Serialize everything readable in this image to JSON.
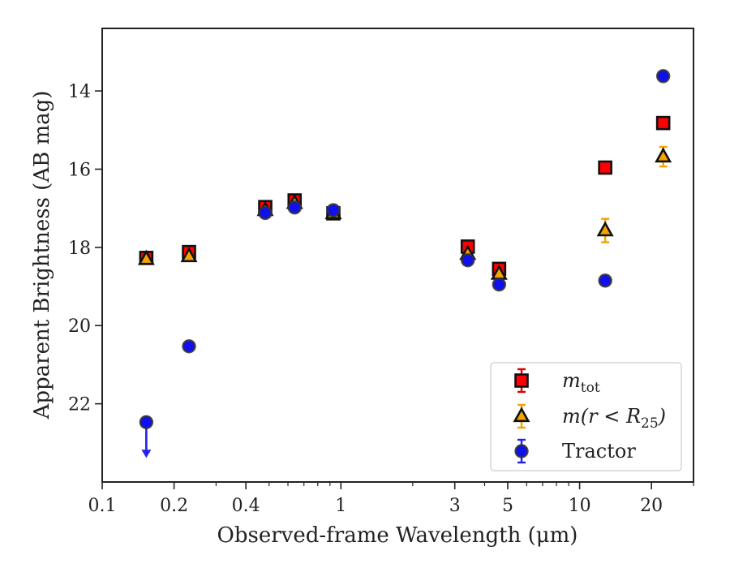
{
  "chart_data": {
    "type": "scatter",
    "xlabel": "Observed-frame Wavelength (μm)",
    "ylabel": "Apparent Brightness (AB mag)",
    "xscale": "log",
    "xlim": [
      0.1,
      30
    ],
    "ylim": [
      24.0,
      12.4
    ],
    "y_inverted": true,
    "x_ticks": [
      0.1,
      0.2,
      0.4,
      1,
      3,
      5,
      10,
      20
    ],
    "x_tick_labels": [
      "0.1",
      "0.2",
      "0.4",
      "1",
      "3",
      "5",
      "10",
      "20"
    ],
    "y_ticks": [
      14,
      16,
      18,
      20,
      22
    ],
    "y_tick_labels": [
      "14",
      "16",
      "18",
      "20",
      "22"
    ],
    "grid": false,
    "legend_position": "lower-right",
    "series": [
      {
        "name": "m_tot",
        "legend_main": "m",
        "legend_sub": "tot",
        "legend_tail": "",
        "marker": "square",
        "color": "#ff0000",
        "edge_color": "#111111",
        "errbar_color": "#dd0000",
        "points": [
          {
            "x": 0.153,
            "y": 18.27,
            "err": 0.05
          },
          {
            "x": 0.231,
            "y": 18.12,
            "err": 0.05
          },
          {
            "x": 0.482,
            "y": 16.97,
            "err": 0.05
          },
          {
            "x": 0.64,
            "y": 16.8,
            "err": 0.05
          },
          {
            "x": 0.93,
            "y": 17.13,
            "err": 0.05
          },
          {
            "x": 3.4,
            "y": 17.98,
            "err": 0.05
          },
          {
            "x": 4.6,
            "y": 18.55,
            "err": 0.05
          },
          {
            "x": 12.8,
            "y": 15.96,
            "err": 0.05
          },
          {
            "x": 22.4,
            "y": 14.82,
            "err": 0.05
          }
        ]
      },
      {
        "name": "m(r < R25)",
        "legend_main": "m(r < R",
        "legend_sub": "25",
        "legend_tail": ")",
        "marker": "triangle",
        "color": "#f5a300",
        "edge_color": "#111111",
        "errbar_color": "#f5a300",
        "points": [
          {
            "x": 0.153,
            "y": 18.3,
            "err": 0.05
          },
          {
            "x": 0.231,
            "y": 18.23,
            "err": 0.05
          },
          {
            "x": 0.482,
            "y": 17.05,
            "err": 0.05
          },
          {
            "x": 0.64,
            "y": 16.87,
            "err": 0.05
          },
          {
            "x": 0.93,
            "y": 17.13,
            "err": 0.05
          },
          {
            "x": 3.4,
            "y": 18.17,
            "err": 0.05
          },
          {
            "x": 4.6,
            "y": 18.68,
            "err": 0.05
          },
          {
            "x": 12.8,
            "y": 17.57,
            "err": 0.3
          },
          {
            "x": 22.4,
            "y": 15.68,
            "err": 0.25
          }
        ]
      },
      {
        "name": "Tractor",
        "legend_main": "Tractor",
        "legend_sub": "",
        "legend_tail": "",
        "marker": "circle",
        "color": "#1010ee",
        "edge_color": "#333333",
        "errbar_color": "#2222ee",
        "points": [
          {
            "x": 0.153,
            "y": 22.47,
            "err": 0.0,
            "upper_limit": true
          },
          {
            "x": 0.231,
            "y": 20.53,
            "err": 0.05
          },
          {
            "x": 0.482,
            "y": 17.12,
            "err": 0.05
          },
          {
            "x": 0.64,
            "y": 16.98,
            "err": 0.05
          },
          {
            "x": 0.93,
            "y": 17.05,
            "err": 0.05
          },
          {
            "x": 3.4,
            "y": 18.33,
            "err": 0.05
          },
          {
            "x": 4.6,
            "y": 18.95,
            "err": 0.05
          },
          {
            "x": 12.8,
            "y": 18.85,
            "err": 0.05
          },
          {
            "x": 22.4,
            "y": 13.62,
            "err": 0.05
          }
        ]
      }
    ]
  }
}
